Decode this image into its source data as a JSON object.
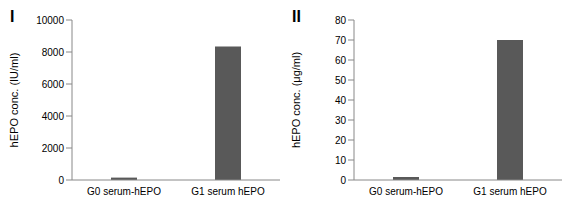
{
  "chart_data": [
    {
      "type": "bar",
      "title": "I",
      "categories": [
        "G0 serum-hEPO",
        "G1 serum hEPO"
      ],
      "values": [
        150,
        8350
      ],
      "color": "#595959",
      "ylim": [
        0,
        10000
      ],
      "yticks": [
        0,
        2000,
        4000,
        6000,
        8000,
        10000
      ],
      "y_label": "hEPO conc. (IU/ml)",
      "grid": false
    },
    {
      "type": "bar",
      "title": "II",
      "categories": [
        "G0 serum-hEPO",
        "G1 serum hEPO"
      ],
      "values": [
        1.5,
        70
      ],
      "color": "#595959",
      "ylim": [
        0,
        80
      ],
      "yticks": [
        0,
        10,
        20,
        30,
        40,
        50,
        60,
        70,
        80
      ],
      "y_label": "hEPO conc. (μg/ml)",
      "grid": false
    }
  ]
}
